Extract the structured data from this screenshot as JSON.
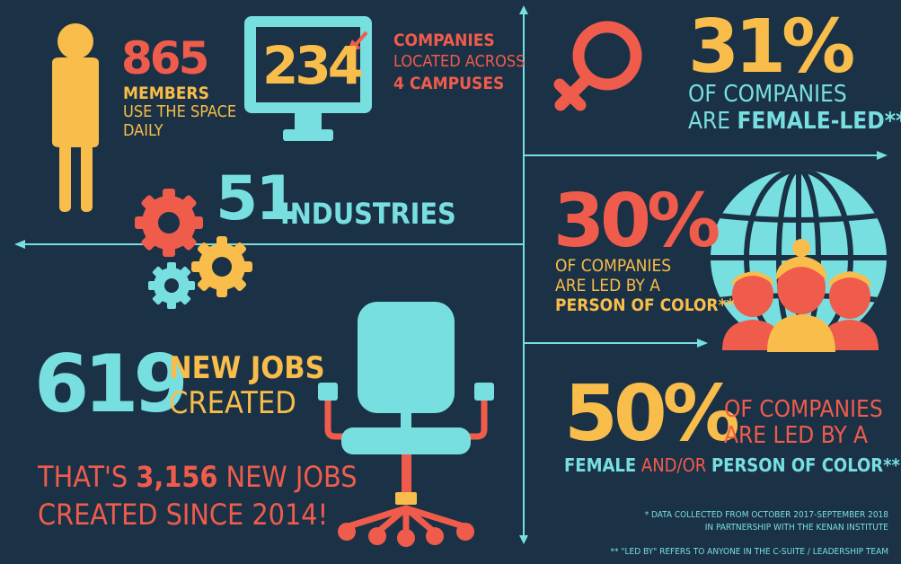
{
  "colors": {
    "background": "#1b3146",
    "teal": "#78dfe0",
    "yellow": "#f8bd4a",
    "coral": "#ef5c4c",
    "white": "#ffffff"
  },
  "icons": [
    "person-icon",
    "monitor-icon",
    "gears-icon",
    "female-symbol-icon",
    "globe-people-icon",
    "office-chair-icon"
  ],
  "members": {
    "number": "865",
    "line1": "MEMBERS",
    "line2": "USE THE SPACE",
    "line3": "DAILY"
  },
  "companies": {
    "number": "234",
    "line1": "COMPANIES",
    "line2": "LOCATED ACROSS",
    "line3": "4 CAMPUSES"
  },
  "industries": {
    "number": "51",
    "label": "INDUSTRIES"
  },
  "jobs": {
    "number": "619",
    "line1": "NEW JOBS",
    "line2": "CREATED"
  },
  "since2014": {
    "pre": "THAT'S ",
    "number": "3,156",
    "post": " NEW JOBS",
    "line2": "CREATED SINCE 2014!"
  },
  "female_led": {
    "percent": "31%",
    "line1": "OF COMPANIES",
    "line2_pre": "ARE ",
    "line2_bold": "FEMALE-LED**"
  },
  "poc_led": {
    "percent": "30%",
    "line1": "OF COMPANIES",
    "line2": "ARE LED BY A",
    "line3": "PERSON OF COLOR**"
  },
  "both_led": {
    "percent": "50%",
    "line1": "OF COMPANIES",
    "line2": "ARE LED BY A",
    "line3_a": "FEMALE",
    "line3_b": " AND/OR ",
    "line3_c": "PERSON OF COLOR**"
  },
  "footnotes": {
    "note1_line1": "* DATA COLLECTED FROM OCTOBER 2017-SEPTEMBER 2018",
    "note1_line2": "IN PARTNERSHIP WITH THE KENAN INSTITUTE",
    "note2": "** \"LED BY\" REFERS TO ANYONE IN THE C-SUITE / LEADERSHIP TEAM"
  }
}
